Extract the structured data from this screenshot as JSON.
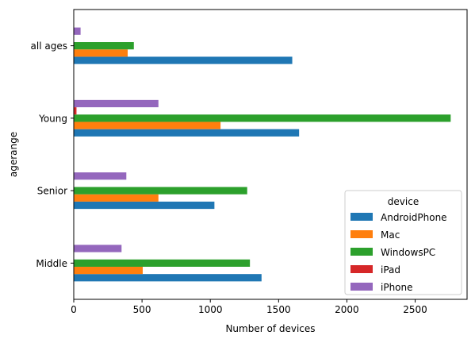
{
  "chart_data": {
    "type": "bar",
    "orientation": "horizontal",
    "categories": [
      "Middle",
      "Senior",
      "Young",
      "all ages"
    ],
    "x_ticks": [
      0,
      500,
      1000,
      1500,
      2000,
      2500
    ],
    "xlim": [
      0,
      2880
    ],
    "xlabel": "Number of devices",
    "ylabel": "agerange",
    "grid": false,
    "legend": {
      "title": "device",
      "placement": "lower-right"
    },
    "series": [
      {
        "name": "AndroidPhone",
        "color": "#1f77b4",
        "values": [
          1375,
          1030,
          1650,
          1600
        ]
      },
      {
        "name": "Mac",
        "color": "#ff7f0e",
        "values": [
          505,
          620,
          1075,
          395
        ]
      },
      {
        "name": "WindowsPC",
        "color": "#2ca02c",
        "values": [
          1290,
          1270,
          2760,
          440
        ]
      },
      {
        "name": "iPad",
        "color": "#d62728",
        "values": [
          0,
          0,
          20,
          0
        ]
      },
      {
        "name": "iPhone",
        "color": "#9467bd",
        "values": [
          350,
          385,
          620,
          50
        ]
      }
    ]
  }
}
